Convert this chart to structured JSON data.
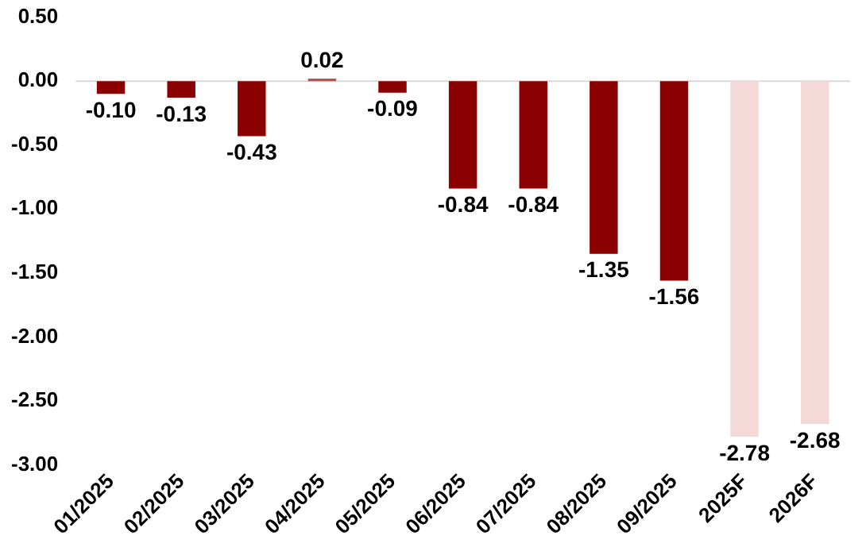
{
  "chart_data": {
    "type": "bar",
    "categories": [
      "01/2025",
      "02/2025",
      "03/2025",
      "04/2025",
      "05/2025",
      "06/2025",
      "07/2025",
      "08/2025",
      "09/2025",
      "2025F",
      "2026F"
    ],
    "values": [
      -0.1,
      -0.13,
      -0.43,
      0.02,
      -0.09,
      -0.84,
      -0.84,
      -1.35,
      -1.56,
      -2.78,
      -2.68
    ],
    "colors": [
      "#8b0000",
      "#8b0000",
      "#8b0000",
      "#c0504d",
      "#8b0000",
      "#8b0000",
      "#8b0000",
      "#8b0000",
      "#8b0000",
      "#f5d9d9",
      "#f5d9d9"
    ],
    "value_labels": [
      "-0.10",
      "-0.13",
      "-0.43",
      "0.02",
      "-0.09",
      "-0.84",
      "-0.84",
      "-1.35",
      "-1.56",
      "-2.78",
      "-2.68"
    ],
    "ylim": [
      -3,
      0.5
    ],
    "yticks": [
      {
        "value": 0.5,
        "label": "0.50"
      },
      {
        "value": 0,
        "label": "0.00"
      },
      {
        "value": -0.5,
        "label": "-0.50"
      },
      {
        "value": -1,
        "label": "-1.00"
      },
      {
        "value": -1.5,
        "label": "-1.50"
      },
      {
        "value": -2,
        "label": "-2.00"
      },
      {
        "value": -2.5,
        "label": "-2.50"
      },
      {
        "value": -3,
        "label": "-3.00"
      }
    ],
    "ref_lines": [
      {
        "axis": "y",
        "value": 0,
        "color": "#d9d9d9"
      }
    ],
    "grid": false,
    "legend": false
  }
}
